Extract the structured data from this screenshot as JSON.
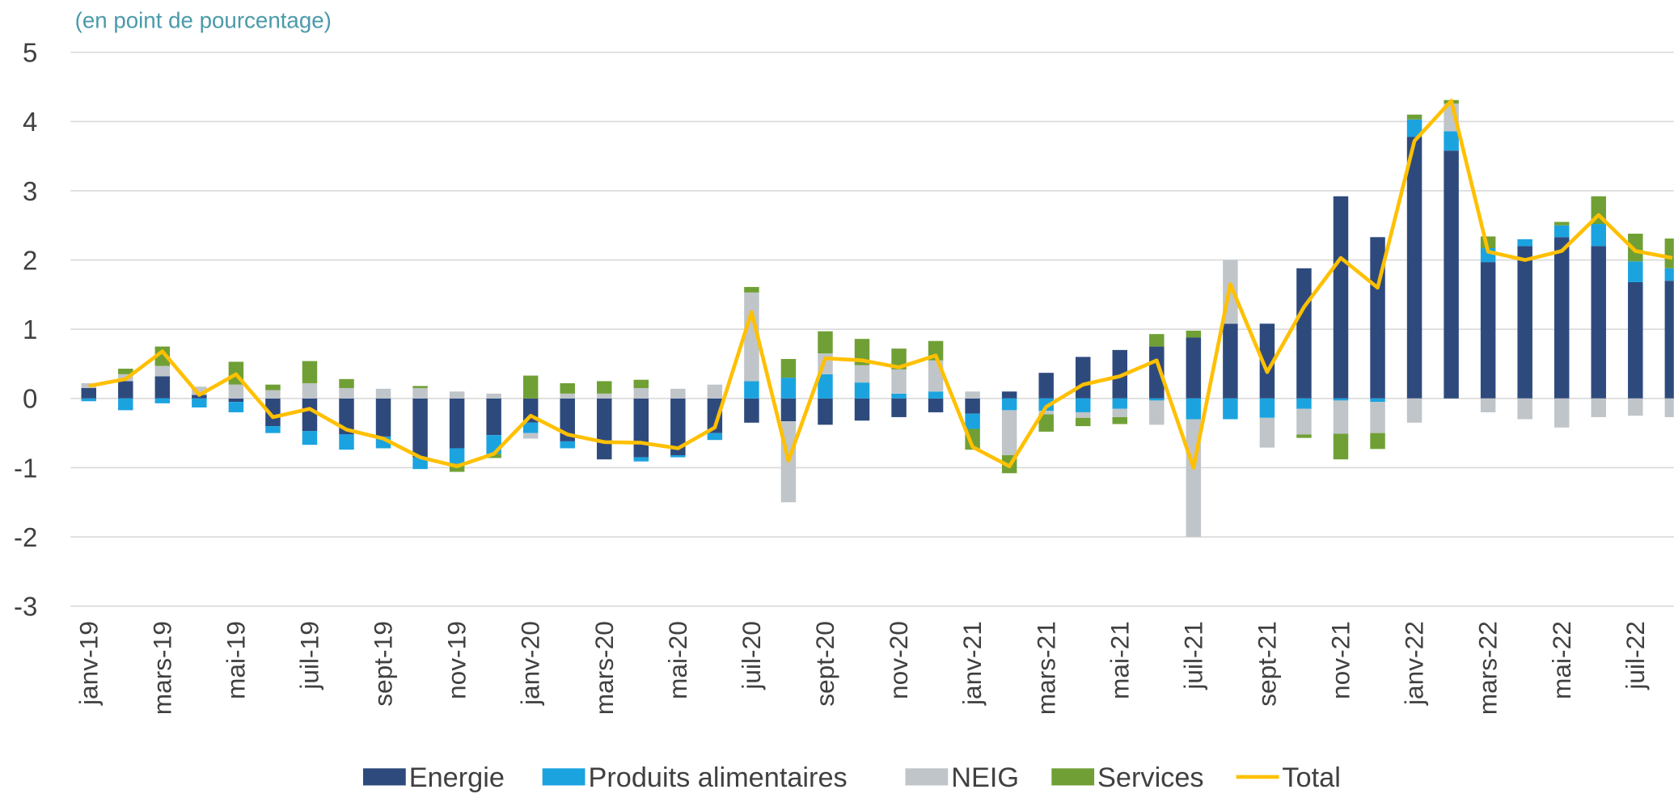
{
  "chart_data": {
    "type": "bar",
    "stacked": true,
    "subtitle": "(en point de pourcentage)",
    "categories": [
      "janv-19",
      null,
      "mars-19",
      null,
      "mai-19",
      null,
      "juil-19",
      null,
      "sept-19",
      null,
      "nov-19",
      null,
      "janv-20",
      null,
      "mars-20",
      null,
      "mai-20",
      null,
      "juil-20",
      null,
      "sept-20",
      null,
      "nov-20",
      null,
      "janv-21",
      null,
      "mars-21",
      null,
      "mai-21",
      null,
      "juil-21",
      null,
      "sept-21",
      null,
      "nov-21",
      null,
      "janv-22",
      null,
      "mars-22",
      null,
      "mai-22",
      null,
      "juil-22",
      null
    ],
    "series": [
      {
        "name": "Energie",
        "color": "#2e4a7d",
        "values": [
          0.15,
          0.25,
          0.32,
          0.05,
          -0.05,
          -0.4,
          -0.47,
          -0.52,
          -0.55,
          -0.85,
          -0.72,
          -0.53,
          -0.35,
          -0.62,
          -0.88,
          -0.85,
          -0.82,
          -0.5,
          -0.35,
          -0.33,
          -0.38,
          -0.32,
          -0.27,
          -0.2,
          -0.22,
          0.1,
          0.37,
          0.6,
          0.7,
          0.75,
          0.88,
          1.08,
          1.08,
          1.88,
          2.92,
          2.33,
          3.78,
          3.58,
          1.97,
          2.2,
          2.33,
          2.2,
          1.68,
          1.7
        ]
      },
      {
        "name": "Produits alimentaires",
        "color": "#1ba3e0",
        "values": [
          -0.04,
          -0.17,
          -0.07,
          -0.13,
          -0.15,
          -0.1,
          -0.2,
          -0.22,
          -0.17,
          -0.17,
          -0.22,
          -0.27,
          -0.15,
          -0.1,
          0,
          -0.06,
          -0.03,
          -0.1,
          0.25,
          0.3,
          0.35,
          0.23,
          0.07,
          0.1,
          -0.22,
          -0.17,
          -0.18,
          -0.2,
          -0.15,
          -0.03,
          -0.3,
          -0.3,
          -0.28,
          -0.15,
          -0.03,
          -0.05,
          0.25,
          0.28,
          0.2,
          0.1,
          0.17,
          0.32,
          0.3,
          0.18
        ]
      },
      {
        "name": "NEIG",
        "color": "#c0c5c9",
        "values": [
          0.07,
          0.1,
          0.15,
          0.12,
          0.2,
          0.12,
          0.22,
          0.15,
          0.14,
          0.15,
          0.1,
          0.07,
          -0.08,
          0.07,
          0.07,
          0.15,
          0.14,
          0.2,
          1.28,
          -1.17,
          0.3,
          0.25,
          0.35,
          0.45,
          0.1,
          -0.65,
          -0.05,
          -0.08,
          -0.12,
          -0.35,
          -1.7,
          0.92,
          -0.43,
          -0.37,
          -0.48,
          -0.45,
          -0.35,
          0.4,
          -0.2,
          -0.3,
          -0.42,
          -0.27,
          -0.25,
          -0.27
        ]
      },
      {
        "name": "Services",
        "color": "#70a035",
        "values": [
          0,
          0.08,
          0.28,
          0,
          0.33,
          0.08,
          0.32,
          0.13,
          0,
          0.03,
          -0.12,
          -0.06,
          0.33,
          0.15,
          0.18,
          0.12,
          0,
          0,
          0.08,
          0.27,
          0.32,
          0.38,
          0.3,
          0.28,
          -0.3,
          -0.26,
          -0.25,
          -0.12,
          -0.1,
          0.18,
          0.1,
          0,
          0,
          -0.05,
          -0.37,
          -0.23,
          0.07,
          0.05,
          0.17,
          0,
          0.05,
          0.4,
          0.4,
          0.43
        ]
      },
      {
        "name": "Total",
        "type": "line",
        "color": "#ffc000",
        "values": [
          0.18,
          0.28,
          0.68,
          0.05,
          0.35,
          -0.27,
          -0.15,
          -0.45,
          -0.58,
          -0.85,
          -0.98,
          -0.8,
          -0.25,
          -0.52,
          -0.63,
          -0.64,
          -0.72,
          -0.42,
          1.25,
          -0.9,
          0.58,
          0.55,
          0.45,
          0.62,
          -0.7,
          -0.98,
          -0.12,
          0.2,
          0.32,
          0.55,
          -1.0,
          1.65,
          0.38,
          1.32,
          2.03,
          1.6,
          3.72,
          4.3,
          2.12,
          2.0,
          2.13,
          2.65,
          2.13,
          2.03
        ]
      }
    ],
    "ylim": [
      -3,
      5
    ],
    "yticks": [
      -3,
      -2,
      -1,
      0,
      1,
      2,
      3,
      4,
      5
    ],
    "grid": true
  }
}
